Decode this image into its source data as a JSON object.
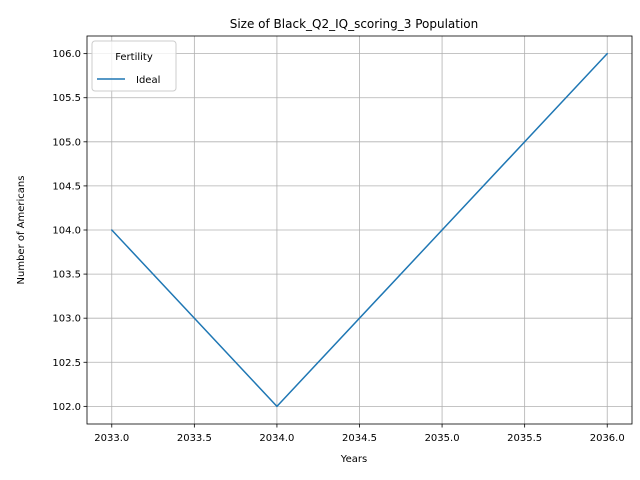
{
  "chart_data": {
    "type": "line",
    "title": "Size of Black_Q2_IQ_scoring_3 Population",
    "xlabel": "Years",
    "ylabel": "Number of Americans",
    "x": [
      2033,
      2034,
      2035,
      2036
    ],
    "series": [
      {
        "name": "Ideal",
        "values": [
          104,
          102,
          104,
          106
        ],
        "color": "#1f77b4"
      }
    ],
    "xlim": [
      2032.85,
      2036.15
    ],
    "ylim": [
      101.8,
      106.2
    ],
    "xticks": [
      "2033.0",
      "2033.5",
      "2034.0",
      "2034.5",
      "2035.0",
      "2035.5",
      "2036.0"
    ],
    "yticks": [
      "102.0",
      "102.5",
      "103.0",
      "103.5",
      "104.0",
      "104.5",
      "105.0",
      "105.5",
      "106.0"
    ],
    "grid": true,
    "legend": {
      "title": "Fertility",
      "placement": "top-left"
    }
  }
}
